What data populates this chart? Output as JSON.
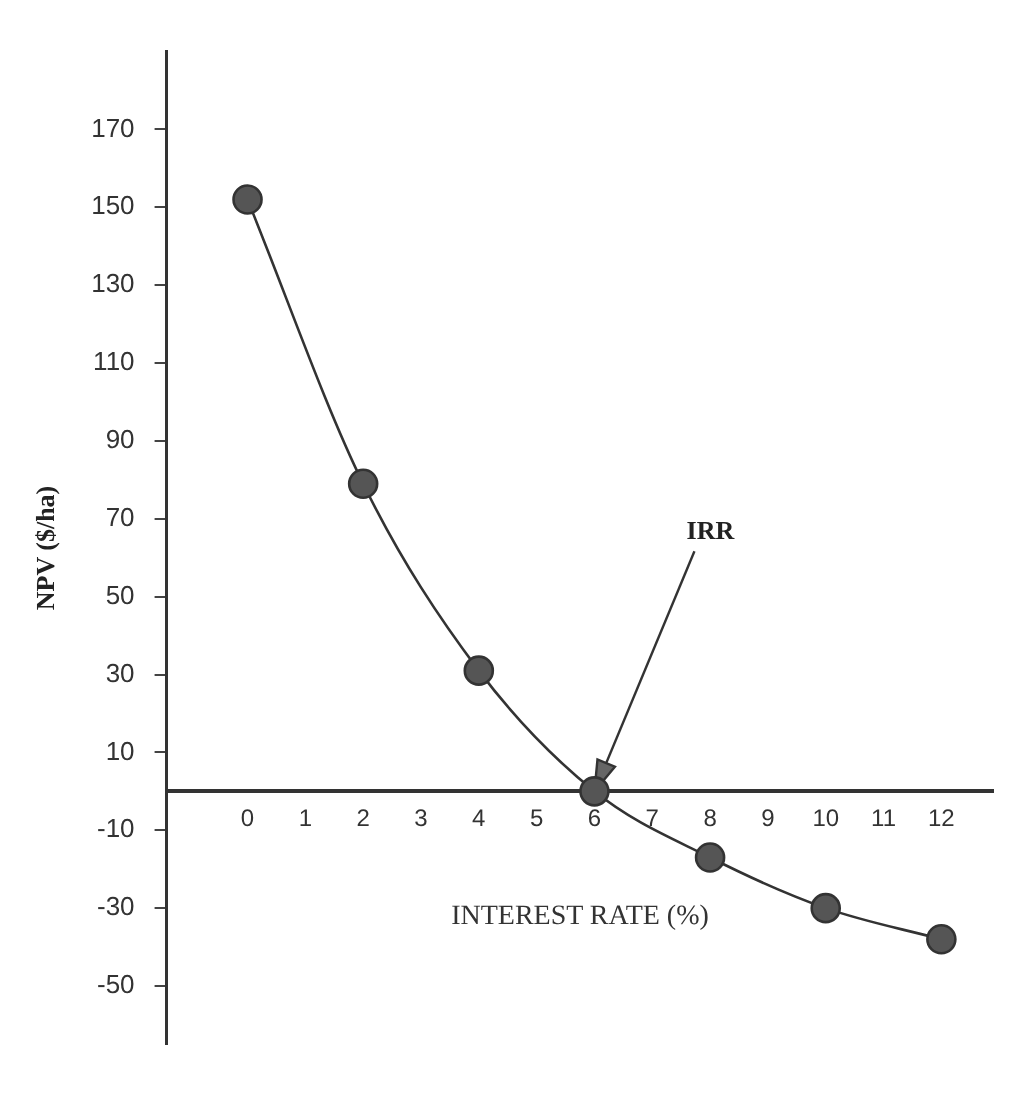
{
  "chart_data": {
    "type": "line",
    "xlabel": "INTEREST RATE (%)",
    "ylabel": "NPV ($/ha)",
    "x": [
      0,
      2,
      4,
      6,
      8,
      10,
      12
    ],
    "series": [
      {
        "color": "#555555",
        "values": [
          152,
          79,
          31,
          0,
          -17,
          -30,
          -38
        ]
      }
    ],
    "xlim": [
      -1.4,
      12.9
    ],
    "xticks": [
      0,
      1,
      2,
      3,
      4,
      5,
      6,
      7,
      8,
      9,
      10,
      11,
      12
    ],
    "ylim": [
      -65,
      190
    ],
    "yticks": [
      -50,
      -30,
      -10,
      10,
      30,
      50,
      70,
      90,
      110,
      130,
      150,
      170
    ],
    "annotations": [
      {
        "text": "IRR",
        "x": 6,
        "y": 0
      }
    ],
    "grid": false,
    "legend": false,
    "marker": "circle",
    "line_style": "solid"
  }
}
